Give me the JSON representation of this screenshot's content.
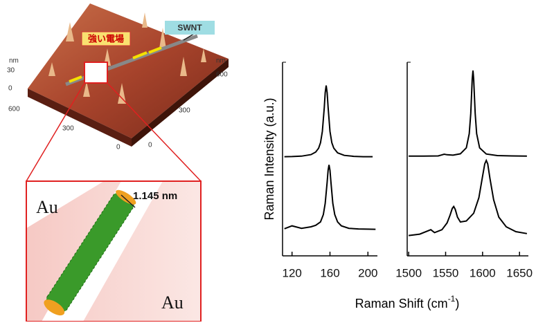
{
  "illustration": {
    "afm_labels": {
      "z_unit_left": "nm",
      "z_top": "30",
      "z_zero": "0",
      "x_left_far": "600",
      "x_left_mid": "300",
      "x_left_zero": "0",
      "z_unit_right": "nm",
      "y_right_far": "600",
      "y_right_mid": "300",
      "y_right_zero": "0"
    },
    "field_label": "強い電場",
    "tube_label": "SWNT",
    "inset": {
      "metal_top": "Au",
      "diameter": "1.145 nm",
      "metal_bottom": "Au"
    }
  },
  "shared": {
    "ylabel": "Raman Intensity (a.u.)",
    "xlabel": [
      "Raman Shift (cm",
      "-1",
      ")"
    ]
  },
  "chart_data": [
    {
      "type": "line",
      "xlim": [
        110,
        210
      ],
      "xticks": [
        120,
        160,
        200
      ],
      "ylim": [
        0,
        10
      ],
      "series": [
        {
          "color": "#000000",
          "x": [
            112,
            120,
            130,
            140,
            145,
            148,
            150,
            152,
            154,
            155,
            156,
            157,
            158,
            160,
            162,
            164,
            168,
            175,
            185,
            195,
            205
          ],
          "values": [
            5.12,
            5.13,
            5.15,
            5.23,
            5.36,
            5.56,
            5.84,
            6.43,
            7.67,
            8.43,
            8.8,
            8.43,
            7.67,
            6.43,
            5.84,
            5.56,
            5.32,
            5.19,
            5.14,
            5.12,
            5.12
          ]
        },
        {
          "color": "#000000",
          "x": [
            112,
            120,
            130,
            140,
            145,
            150,
            153,
            155,
            157,
            158,
            159,
            160,
            161,
            163,
            165,
            168,
            172,
            180,
            190,
            200,
            208
          ],
          "values": [
            1.4,
            1.55,
            1.42,
            1.5,
            1.58,
            1.75,
            2.13,
            2.71,
            3.8,
            4.42,
            4.7,
            4.42,
            3.8,
            2.71,
            2.13,
            1.75,
            1.55,
            1.42,
            1.39,
            1.38,
            1.37
          ]
        }
      ]
    },
    {
      "type": "line",
      "xlim": [
        1498,
        1662
      ],
      "xticks": [
        1500,
        1550,
        1600,
        1650
      ],
      "ylim": [
        0,
        10
      ],
      "series": [
        {
          "color": "#000000",
          "x": [
            1500,
            1520,
            1540,
            1548,
            1552,
            1560,
            1570,
            1578,
            1582,
            1584,
            1586,
            1587,
            1588,
            1590,
            1592,
            1596,
            1605,
            1620,
            1640,
            1660
          ],
          "values": [
            5.15,
            5.15,
            5.16,
            5.25,
            5.22,
            5.2,
            5.27,
            5.58,
            6.31,
            7.35,
            9.13,
            9.57,
            9.13,
            7.35,
            6.31,
            5.58,
            5.26,
            5.18,
            5.16,
            5.15
          ]
        },
        {
          "color": "#000000",
          "x": [
            1500,
            1515,
            1530,
            1535,
            1545,
            1552,
            1556,
            1559,
            1561,
            1563,
            1566,
            1570,
            1578,
            1588,
            1595,
            1600,
            1603,
            1605,
            1607,
            1610,
            1615,
            1622,
            1632,
            1645,
            1660
          ],
          "values": [
            1.05,
            1.12,
            1.35,
            1.2,
            1.35,
            1.7,
            2.1,
            2.45,
            2.55,
            2.4,
            2.0,
            1.75,
            1.8,
            2.2,
            3.0,
            4.1,
            4.75,
            4.93,
            4.75,
            4.0,
            2.9,
            2.0,
            1.5,
            1.25,
            1.15
          ]
        }
      ]
    }
  ]
}
